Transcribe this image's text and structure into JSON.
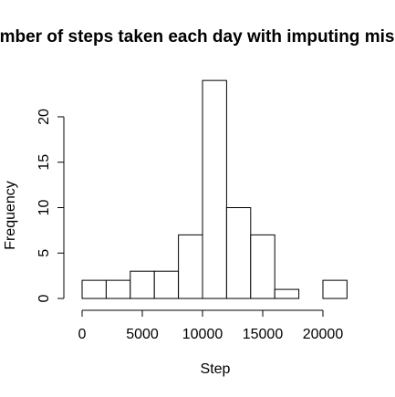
{
  "chart_data": {
    "type": "histogram",
    "title": "mber of steps taken each day with imputing mis",
    "xlabel": "Step",
    "ylabel": "Frequency",
    "bins": [
      0,
      2000,
      4000,
      6000,
      8000,
      10000,
      12000,
      14000,
      16000,
      18000,
      20000,
      22000
    ],
    "values": [
      2,
      2,
      3,
      3,
      7,
      24,
      10,
      7,
      1,
      0,
      2
    ],
    "color": "#ffffff",
    "edgecolor": "#000000",
    "xlim": [
      -880,
      22880
    ],
    "ylim": [
      -0.96,
      24.96
    ],
    "xticks": [
      0,
      5000,
      10000,
      15000,
      20000
    ],
    "yticks": [
      0,
      5,
      10,
      15,
      20
    ]
  }
}
